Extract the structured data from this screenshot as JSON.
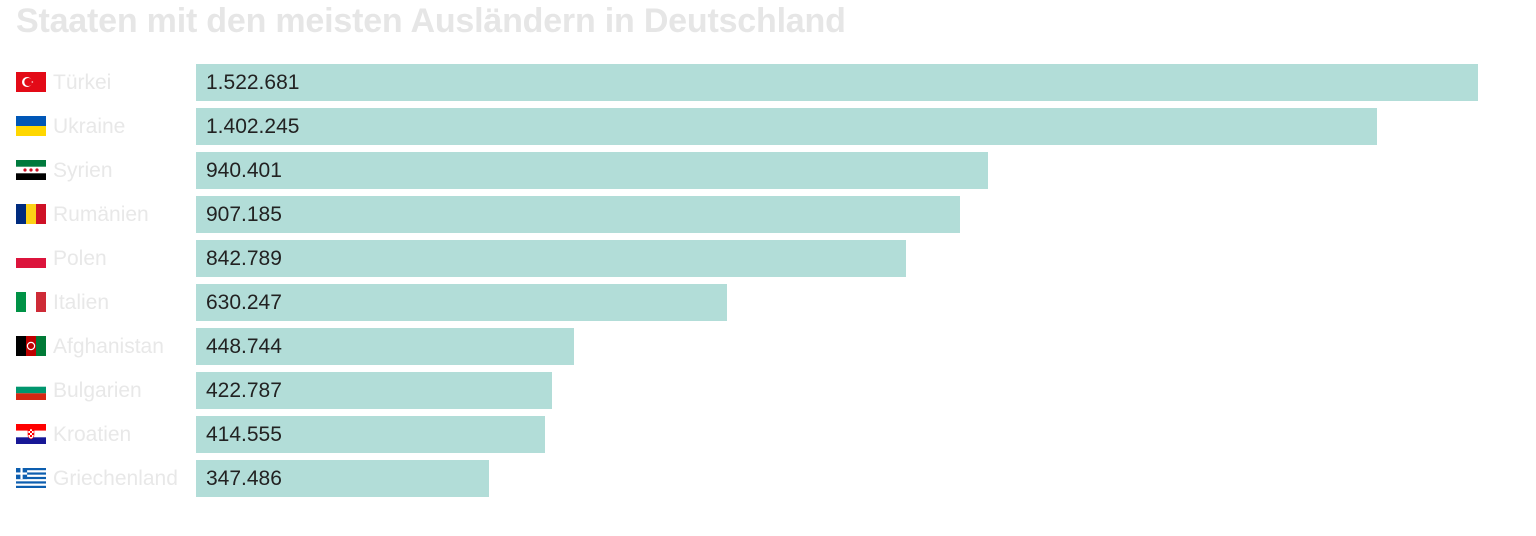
{
  "chart_data": {
    "type": "bar",
    "orientation": "horizontal",
    "title": "Staaten mit den meisten Ausländern in Deutschland",
    "categories": [
      "Türkei",
      "Ukraine",
      "Syrien",
      "Rumänien",
      "Polen",
      "Italien",
      "Afghanistan",
      "Bulgarien",
      "Kroatien",
      "Griechenland"
    ],
    "values": [
      1522681,
      1402245,
      940401,
      907185,
      842789,
      630247,
      448744,
      422787,
      414555,
      347486
    ],
    "value_labels": [
      "1.522.681",
      "1.402.245",
      "940.401",
      "907.185",
      "842.789",
      "630.247",
      "448.744",
      "422.787",
      "414.555",
      "347.486"
    ],
    "flag_icons": [
      "turkey-flag-icon",
      "ukraine-flag-icon",
      "syria-flag-icon",
      "romania-flag-icon",
      "poland-flag-icon",
      "italy-flag-icon",
      "afghanistan-flag-icon",
      "bulgaria-flag-icon",
      "croatia-flag-icon",
      "greece-flag-icon"
    ],
    "bar_color": "#b2ddd8",
    "grid": false,
    "legend": "none"
  }
}
